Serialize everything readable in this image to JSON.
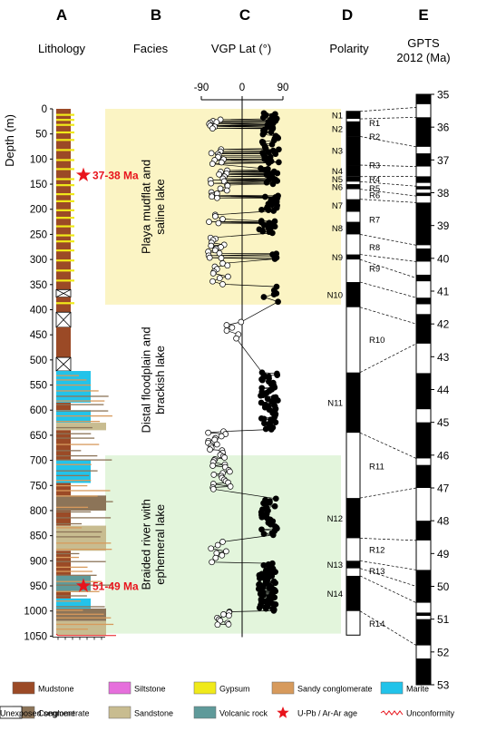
{
  "colors": {
    "mudstone": "#9b4a26",
    "siltstone": "#e66fdc",
    "gypsum": "#f0ea1a",
    "sandy_conglomerate": "#d79a5c",
    "marite": "#22c3ea",
    "conglomerate": "#8c7458",
    "sandstone": "#c8bc90",
    "volcanic_rock": "#5f9a9a",
    "star": "#e8141c",
    "unconformity": "#e8141c",
    "zone_playa": "#fbf4c4",
    "zone_distal": "#ffffff",
    "zone_braided": "#e3f5dc",
    "normal": "#000000",
    "reversed": "#ffffff"
  },
  "chart_data": [
    {
      "type": "lithology-column",
      "panel_letter": "A",
      "title": "Lithology",
      "ylabel": "Depth (m)",
      "yticks": [
        0,
        50,
        100,
        150,
        200,
        250,
        300,
        350,
        400,
        450,
        500,
        550,
        600,
        650,
        700,
        750,
        800,
        850,
        900,
        950,
        1000,
        1050
      ],
      "ylim": [
        0,
        1060
      ],
      "blocks": [
        {
          "from": 0,
          "to": 360,
          "lith": "mudstone"
        },
        {
          "from": 360,
          "to": 375,
          "lith": "unexposed"
        },
        {
          "from": 375,
          "to": 405,
          "lith": "mudstone"
        },
        {
          "from": 405,
          "to": 435,
          "lith": "unexposed"
        },
        {
          "from": 435,
          "to": 495,
          "lith": "mudstone"
        },
        {
          "from": 495,
          "to": 522,
          "lith": "unexposed"
        },
        {
          "from": 522,
          "to": 540,
          "lith": "marite"
        },
        {
          "from": 540,
          "to": 585,
          "lith": "marite"
        },
        {
          "from": 585,
          "to": 600,
          "lith": "mudstone"
        },
        {
          "from": 600,
          "to": 625,
          "lith": "marite"
        },
        {
          "from": 625,
          "to": 640,
          "lith": "sandstone"
        },
        {
          "from": 640,
          "to": 700,
          "lith": "mudstone"
        },
        {
          "from": 700,
          "to": 745,
          "lith": "marite"
        },
        {
          "from": 745,
          "to": 770,
          "lith": "mudstone"
        },
        {
          "from": 770,
          "to": 800,
          "lith": "conglomerate"
        },
        {
          "from": 800,
          "to": 830,
          "lith": "mudstone"
        },
        {
          "from": 830,
          "to": 880,
          "lith": "sandstone"
        },
        {
          "from": 880,
          "to": 930,
          "lith": "mudstone"
        },
        {
          "from": 930,
          "to": 960,
          "lith": "volcanic_rock"
        },
        {
          "from": 960,
          "to": 975,
          "lith": "mudstone"
        },
        {
          "from": 975,
          "to": 995,
          "lith": "marite"
        },
        {
          "from": 995,
          "to": 1020,
          "lith": "conglomerate"
        },
        {
          "from": 1020,
          "to": 1048,
          "lith": "sandstone"
        }
      ],
      "gypsum_bands": [
        10,
        20,
        30,
        45,
        60,
        80,
        100,
        118,
        138,
        150,
        168,
        182,
        200,
        215,
        232,
        250,
        262,
        280,
        300,
        320,
        340,
        385
      ],
      "ages": [
        {
          "depth": 132,
          "label": "37-38 Ma"
        },
        {
          "depth": 950,
          "label": "51-49 Ma"
        }
      ]
    },
    {
      "type": "facies-zones",
      "panel_letter": "B",
      "title": "Facies",
      "zones": [
        {
          "from": 0,
          "to": 390,
          "name": "Playa mudflat and saline lake",
          "line1": "Playa mudflat and",
          "line2": "saline lake",
          "color_key": "zone_playa"
        },
        {
          "from": 390,
          "to": 690,
          "name": "Distal floodplain and brackish lake",
          "line1": "Distal floodplain and",
          "line2": "brackish lake",
          "color_key": "zone_distal"
        },
        {
          "from": 690,
          "to": 1045,
          "name": "Braided river with ephemeral lake",
          "line1": "Braided river with",
          "line2": "ephemeral lake",
          "color_key": "zone_braided"
        }
      ]
    },
    {
      "type": "scatter",
      "panel_letter": "C",
      "title": "VGP Lat (°)",
      "xticks": [
        -90,
        0,
        90
      ],
      "xlim": [
        -110,
        110
      ],
      "normal_clusters": [
        {
          "from": 8,
          "to": 48,
          "center": 58,
          "n": 22
        },
        {
          "from": 50,
          "to": 110,
          "center": 62,
          "n": 26
        },
        {
          "from": 118,
          "to": 150,
          "center": 60,
          "n": 18
        },
        {
          "from": 172,
          "to": 205,
          "center": 62,
          "n": 18
        },
        {
          "from": 222,
          "to": 248,
          "center": 55,
          "n": 16
        },
        {
          "from": 288,
          "to": 300,
          "center": 60,
          "n": 6
        },
        {
          "from": 352,
          "to": 385,
          "center": 62,
          "n": 6
        },
        {
          "from": 525,
          "to": 640,
          "center": 60,
          "n": 60
        },
        {
          "from": 775,
          "to": 850,
          "center": 58,
          "n": 30
        },
        {
          "from": 905,
          "to": 1000,
          "center": 55,
          "n": 70
        }
      ],
      "reversed_clusters": [
        {
          "from": 20,
          "to": 40,
          "center": -55,
          "n": 8
        },
        {
          "from": 80,
          "to": 110,
          "center": -55,
          "n": 10
        },
        {
          "from": 120,
          "to": 180,
          "center": -50,
          "n": 18
        },
        {
          "from": 210,
          "to": 230,
          "center": -55,
          "n": 5
        },
        {
          "from": 255,
          "to": 300,
          "center": -55,
          "n": 14
        },
        {
          "from": 305,
          "to": 350,
          "center": -50,
          "n": 10
        },
        {
          "from": 420,
          "to": 460,
          "center": -20,
          "n": 6
        },
        {
          "from": 640,
          "to": 700,
          "center": -55,
          "n": 18
        },
        {
          "from": 700,
          "to": 760,
          "center": -45,
          "n": 18
        },
        {
          "from": 860,
          "to": 905,
          "center": -50,
          "n": 8
        },
        {
          "from": 1000,
          "to": 1030,
          "center": -45,
          "n": 10
        }
      ]
    },
    {
      "type": "polarity-column",
      "panel_letter": "D",
      "title": "Polarity",
      "normal_zones": [
        {
          "from": 5,
          "to": 20,
          "label": "N1"
        },
        {
          "from": 25,
          "to": 55,
          "label": "N2"
        },
        {
          "from": 55,
          "to": 112,
          "label": "N3"
        },
        {
          "from": 112,
          "to": 135,
          "label": "N4"
        },
        {
          "from": 135,
          "to": 145,
          "label": "N5"
        },
        {
          "from": 150,
          "to": 160,
          "label": "N6"
        },
        {
          "from": 180,
          "to": 205,
          "label": "N7"
        },
        {
          "from": 225,
          "to": 250,
          "label": "N8"
        },
        {
          "from": 290,
          "to": 300,
          "label": "N9"
        },
        {
          "from": 345,
          "to": 395,
          "label": "N10"
        },
        {
          "from": 525,
          "to": 645,
          "label": "N11"
        },
        {
          "from": 775,
          "to": 855,
          "label": "N12"
        },
        {
          "from": 900,
          "to": 915,
          "label": "N13"
        },
        {
          "from": 930,
          "to": 1000,
          "label": "N14"
        }
      ],
      "reversed_labels": [
        {
          "depth": 28,
          "label": "R1"
        },
        {
          "depth": 55,
          "label": "R2"
        },
        {
          "depth": 112,
          "label": "R3"
        },
        {
          "depth": 140,
          "label": "R4"
        },
        {
          "depth": 158,
          "label": "R5"
        },
        {
          "depth": 172,
          "label": "R6"
        },
        {
          "depth": 220,
          "label": "R7"
        },
        {
          "depth": 275,
          "label": "R8"
        },
        {
          "depth": 318,
          "label": "R9"
        },
        {
          "depth": 460,
          "label": "R10"
        },
        {
          "depth": 712,
          "label": "R11"
        },
        {
          "depth": 878,
          "label": "R12"
        },
        {
          "depth": 920,
          "label": "R13"
        },
        {
          "depth": 1025,
          "label": "R14"
        }
      ]
    },
    {
      "type": "timescale",
      "panel_letter": "E",
      "title_line1": "GPTS",
      "title_line2": "2012 (Ma)",
      "ylim": [
        35,
        53
      ],
      "ticks": [
        35,
        36,
        37,
        38,
        39,
        40,
        41,
        42,
        43,
        44,
        45,
        46,
        47,
        48,
        49,
        50,
        51,
        52,
        53
      ],
      "normal_chrons": [
        [
          35.0,
          35.3
        ],
        [
          35.7,
          36.6
        ],
        [
          36.8,
          37.2
        ],
        [
          37.5,
          37.7
        ],
        [
          37.8,
          37.9
        ],
        [
          38.0,
          38.1
        ],
        [
          38.3,
          39.6
        ],
        [
          39.7,
          40.1
        ],
        [
          40.5,
          40.7
        ],
        [
          41.2,
          41.4
        ],
        [
          41.7,
          42.6
        ],
        [
          43.5,
          44.6
        ],
        [
          45.0,
          46.1
        ],
        [
          46.3,
          47.0
        ],
        [
          48.0,
          48.6
        ],
        [
          49.5,
          50.5
        ],
        [
          50.8,
          50.9
        ],
        [
          51.0,
          51.8
        ],
        [
          52.2,
          53.0
        ]
      ],
      "correlations": [
        [
          5,
          35.4
        ],
        [
          20,
          35.7
        ],
        [
          55,
          36.6
        ],
        [
          112,
          37.2
        ],
        [
          135,
          37.5
        ],
        [
          145,
          37.8
        ],
        [
          160,
          38.1
        ],
        [
          180,
          38.3
        ],
        [
          250,
          39.6
        ],
        [
          290,
          40.1
        ],
        [
          300,
          40.6
        ],
        [
          345,
          41.2
        ],
        [
          395,
          42.0
        ],
        [
          525,
          42.6
        ],
        [
          645,
          46.1
        ],
        [
          775,
          47.0
        ],
        [
          855,
          48.6
        ],
        [
          900,
          49.5
        ],
        [
          915,
          50.0
        ],
        [
          930,
          50.5
        ],
        [
          1000,
          51.8
        ]
      ]
    }
  ],
  "legend": [
    {
      "label": "Mudstone",
      "key": "mudstone",
      "kind": "swatch"
    },
    {
      "label": "Siltstone",
      "key": "siltstone",
      "kind": "swatch"
    },
    {
      "label": "Gypsum",
      "key": "gypsum",
      "kind": "swatch"
    },
    {
      "label": "Sandy conglomerate",
      "key": "sandy_conglomerate",
      "kind": "swatch"
    },
    {
      "label": "Marite",
      "key": "marite",
      "kind": "swatch"
    },
    {
      "label": "Conglomerate",
      "key": "conglomerate",
      "kind": "swatch"
    },
    {
      "label": "Sandstone",
      "key": "sandstone",
      "kind": "swatch"
    },
    {
      "label": "Volcanic rock",
      "key": "volcanic_rock",
      "kind": "swatch"
    },
    {
      "label": "U-Pb / Ar-Ar age",
      "key": "star",
      "kind": "star"
    },
    {
      "label": "Unconformity",
      "key": "unconformity",
      "kind": "wave"
    },
    {
      "label": "Unexposed segment",
      "key": "unexposed",
      "kind": "cross"
    }
  ]
}
